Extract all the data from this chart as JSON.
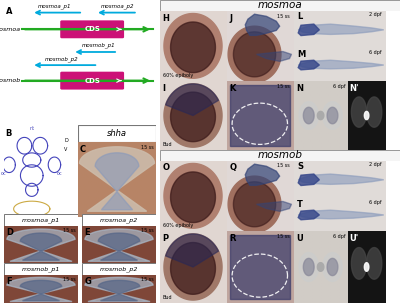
{
  "fig_width": 4.0,
  "fig_height": 3.06,
  "dpi": 100,
  "bg_color": "#ffffff",
  "mosmoa_header": "mosmoa",
  "mosmob_header": "mosmob",
  "shha_label": "shha",
  "mosmoa_p1_label": "mosmoa_p1",
  "mosmoa_p2_label": "mosmoa_p2",
  "mosmob_p1_label": "mosmob_p1",
  "mosmob_p2_label": "mosmob_p2",
  "mosmoa_gene_label": "mosmoa",
  "mosmob_gene_label": "mosmob",
  "CDS_label": "CDS",
  "CDS_color": "#cc1177",
  "green_arrow_color": "#22aa22",
  "blue_arrow_color": "#00aadd",
  "ss15_label": "15 ss",
  "bud_label": "Bud",
  "epiboly_label": "60% epiboly",
  "dpf2_label": "2 dpf",
  "dpf6_label": "6 dpf",
  "diagram_line_color": "#4444bb",
  "yolk_color": "#ccaa44",
  "embryo_bg": "#c8a090",
  "embryo_dark": "#4a1818",
  "embryo_blue": "#2a2855",
  "tissue_bg": "#b08878",
  "tissue_dark": "#3a1010",
  "tissue_blue": "#333366",
  "gray_tissue": "#b0b0b0",
  "black_tissue": "#222222",
  "light_bg": "#d8d0c8"
}
